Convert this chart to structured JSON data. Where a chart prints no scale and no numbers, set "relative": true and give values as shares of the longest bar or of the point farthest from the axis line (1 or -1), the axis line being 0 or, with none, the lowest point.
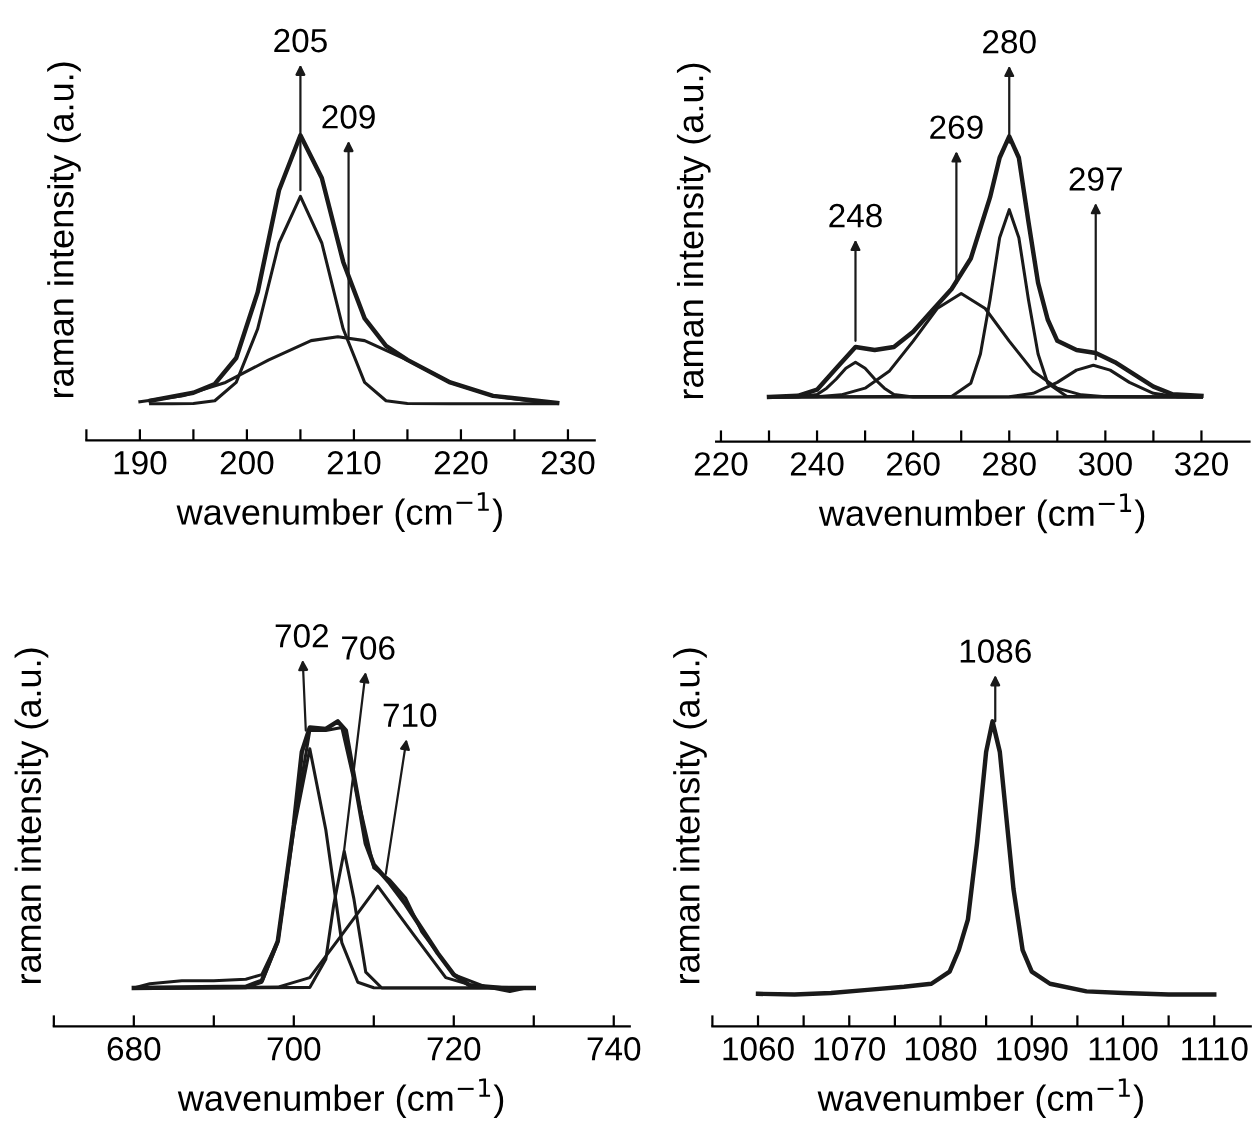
{
  "chart_data": [
    {
      "type": "line",
      "relative": true,
      "xlabel": "wavenumber (cm$^{−1}$)",
      "ylabel": "raman intensity (a.u.)",
      "tick_labels": "x",
      "grid": false,
      "legend": false,
      "xlim": [
        185,
        232.5
      ],
      "xticks": [
        {
          "value": 185,
          "label": null
        },
        190,
        {
          "value": 195,
          "label": null
        },
        200,
        {
          "value": 205,
          "label": null
        },
        210,
        {
          "value": 215,
          "label": null
        },
        220,
        {
          "value": 225,
          "label": null
        },
        230
      ],
      "series": [
        {
          "color": "#1a1a1a",
          "x": [
            191,
            195,
            197,
            199,
            201,
            203,
            205,
            207,
            209,
            211,
            213,
            215,
            219,
            223,
            229
          ],
          "values": [
            0.13,
            0.156,
            0.185,
            0.27,
            0.485,
            0.82,
            1.0,
            0.86,
            0.585,
            0.4,
            0.31,
            0.264,
            0.19,
            0.146,
            0.123
          ]
        },
        {
          "color": "#1a1a1a",
          "x": [
            191,
            193,
            195,
            197,
            199,
            201,
            203,
            205,
            207,
            209,
            211,
            213,
            215,
            219,
            223,
            229
          ],
          "values": [
            0.12,
            0.12,
            0.121,
            0.13,
            0.19,
            0.365,
            0.647,
            0.8,
            0.647,
            0.365,
            0.19,
            0.13,
            0.121,
            0.12,
            0.12,
            0.12
          ]
        },
        {
          "color": "#1a1a1a",
          "x": [
            190,
            194,
            198,
            202,
            206,
            208.5,
            211,
            215,
            219,
            223,
            227,
            229
          ],
          "values": [
            0.127,
            0.146,
            0.19,
            0.263,
            0.327,
            0.34,
            0.327,
            0.263,
            0.19,
            0.146,
            0.127,
            0.123
          ]
        }
      ],
      "annotations": [
        {
          "text": "205",
          "x": 205,
          "y": 0.82
        },
        {
          "text": "209",
          "x": 209.5,
          "y": 0.34
        }
      ]
    },
    {
      "type": "line",
      "relative": true,
      "xlabel": "wavenumber (cm$^{−1}$)",
      "ylabel": "raman intensity (a.u.)",
      "tick_labels": "x",
      "grid": false,
      "legend": false,
      "xlim": [
        219,
        330
      ],
      "xticks": [
        220,
        {
          "value": 230,
          "label": null
        },
        240,
        {
          "value": 250,
          "label": null
        },
        260,
        {
          "value": 270,
          "label": null
        },
        280,
        {
          "value": 290,
          "label": null
        },
        300,
        {
          "value": 310,
          "label": null
        },
        320
      ],
      "series": [
        {
          "color": "#1a1a1a",
          "x": [
            230,
            236,
            240,
            244,
            248,
            252,
            256,
            260,
            264,
            268,
            272,
            276,
            278,
            280,
            282,
            284,
            286,
            288,
            290,
            294,
            298,
            302,
            306,
            310,
            314,
            320
          ],
          "values": [
            0.146,
            0.15,
            0.17,
            0.24,
            0.31,
            0.3,
            0.31,
            0.36,
            0.43,
            0.5,
            0.6,
            0.8,
            0.93,
            1.0,
            0.93,
            0.72,
            0.52,
            0.4,
            0.33,
            0.3,
            0.29,
            0.26,
            0.22,
            0.18,
            0.155,
            0.15
          ]
        },
        {
          "color": "#1a1a1a",
          "x": [
            230,
            236,
            240,
            242,
            244,
            246,
            248,
            250,
            252,
            254,
            256,
            260,
            320
          ],
          "values": [
            0.146,
            0.146,
            0.154,
            0.175,
            0.205,
            0.24,
            0.26,
            0.24,
            0.205,
            0.175,
            0.154,
            0.146,
            0.146
          ]
        },
        {
          "color": "#1a1a1a",
          "x": [
            230,
            240,
            245,
            250,
            255,
            260,
            265,
            270,
            275,
            280,
            285,
            290,
            295,
            300,
            320
          ],
          "values": [
            0.146,
            0.147,
            0.153,
            0.175,
            0.23,
            0.329,
            0.436,
            0.485,
            0.436,
            0.329,
            0.23,
            0.175,
            0.153,
            0.147,
            0.146
          ]
        },
        {
          "color": "#1a1a1a",
          "x": [
            230,
            268,
            272,
            274,
            276,
            278,
            280,
            282,
            284,
            286,
            288,
            292,
            320
          ],
          "values": [
            0.146,
            0.148,
            0.191,
            0.287,
            0.465,
            0.668,
            0.76,
            0.668,
            0.465,
            0.287,
            0.191,
            0.148,
            0.146
          ]
        },
        {
          "color": "#1a1a1a",
          "x": [
            230,
            270,
            280,
            285,
            290,
            294,
            297.5,
            301,
            305,
            310,
            315,
            320
          ],
          "values": [
            0.146,
            0.146,
            0.147,
            0.158,
            0.194,
            0.234,
            0.25,
            0.234,
            0.194,
            0.158,
            0.147,
            0.146
          ]
        }
      ],
      "annotations": [
        {
          "text": "248",
          "x": 248,
          "y": 0.33
        },
        {
          "text": "269",
          "x": 269,
          "y": 0.52
        },
        {
          "text": "280",
          "x": 280,
          "y": 0.98
        },
        {
          "text": "297",
          "x": 298,
          "y": 0.27
        }
      ]
    },
    {
      "type": "line",
      "relative": true,
      "xlabel": "wavenumber (cm$^{−1}$)",
      "ylabel": "raman intensity (a.u.)",
      "tick_labels": "x",
      "grid": false,
      "legend": false,
      "xlim": [
        670,
        742
      ],
      "xticks": [
        {
          "value": 670,
          "label": null
        },
        680,
        {
          "value": 690,
          "label": null
        },
        700,
        {
          "value": 710,
          "label": null
        },
        720,
        {
          "value": 730,
          "label": null
        },
        740
      ],
      "series": [
        {
          "color": "#1a1a1a",
          "x": [
            680,
            694,
            696,
            698,
            700,
            701,
            702,
            704,
            705.5,
            706.5,
            708,
            709,
            710,
            712,
            714,
            716,
            718,
            720,
            722,
            726,
            730
          ],
          "values": [
            0.126,
            0.13,
            0.15,
            0.28,
            0.66,
            0.9,
            0.98,
            0.975,
            1.0,
            0.97,
            0.75,
            0.6,
            0.53,
            0.47,
            0.4,
            0.32,
            0.24,
            0.17,
            0.135,
            0.126,
            0.126
          ]
        },
        {
          "color": "#1a1a1a",
          "x": [
            680,
            682,
            686,
            690,
            694,
            696,
            698,
            700,
            702,
            704,
            706,
            708,
            710,
            712,
            714,
            716,
            720,
            724,
            727,
            729
          ],
          "values": [
            0.126,
            0.14,
            0.15,
            0.15,
            0.155,
            0.17,
            0.28,
            0.66,
            0.97,
            0.97,
            0.98,
            0.75,
            0.52,
            0.48,
            0.42,
            0.31,
            0.17,
            0.13,
            0.115,
            0.126
          ]
        },
        {
          "color": "#1a1a1a",
          "x": [
            680,
            694,
            696,
            698,
            700,
            702,
            704,
            706,
            708,
            710,
            730
          ],
          "values": [
            0.126,
            0.127,
            0.145,
            0.275,
            0.645,
            0.91,
            0.645,
            0.275,
            0.145,
            0.127,
            0.126
          ]
        },
        {
          "color": "#1a1a1a",
          "x": [
            680,
            702,
            704,
            705,
            706.3,
            707.5,
            709,
            711,
            730
          ],
          "values": [
            0.126,
            0.128,
            0.22,
            0.4,
            0.575,
            0.42,
            0.178,
            0.126,
            0.126
          ]
        },
        {
          "color": "#1a1a1a",
          "x": [
            680,
            698,
            702,
            706,
            710.5,
            715,
            719,
            723,
            730
          ],
          "values": [
            0.126,
            0.129,
            0.16,
            0.3,
            0.46,
            0.3,
            0.16,
            0.129,
            0.126
          ]
        }
      ],
      "annotations": [
        {
          "text": "702",
          "x": 701.5,
          "y": 0.97
        },
        {
          "text": "706",
          "x": 706.3,
          "y": 0.58
        },
        {
          "text": "710",
          "x": 711.5,
          "y": 0.5
        }
      ]
    },
    {
      "type": "line",
      "relative": true,
      "xlabel": "wavenumber (cm$^{−1}$)",
      "ylabel": "raman intensity (a.u.)",
      "tick_labels": "x",
      "grid": false,
      "legend": false,
      "xlim": [
        1055,
        1114
      ],
      "xticks": [
        {
          "value": 1055,
          "label": null
        },
        1060,
        {
          "value": 1065,
          "label": null
        },
        1070,
        {
          "value": 1075,
          "label": null
        },
        1080,
        {
          "value": 1085,
          "label": null
        },
        1090,
        {
          "value": 1095,
          "label": null
        },
        1100,
        {
          "value": 1105,
          "label": null
        },
        1110
      ],
      "series": [
        {
          "color": "#1a1a1a",
          "x": [
            1060,
            1064,
            1068,
            1072,
            1076,
            1079,
            1081,
            1082,
            1083,
            1084,
            1085,
            1085.7,
            1086.5,
            1087,
            1088,
            1089,
            1090,
            1092,
            1096,
            1100,
            1105,
            1110
          ],
          "values": [
            0.107,
            0.105,
            0.11,
            0.12,
            0.13,
            0.14,
            0.18,
            0.25,
            0.35,
            0.6,
            0.9,
            1.0,
            0.9,
            0.75,
            0.45,
            0.25,
            0.18,
            0.14,
            0.115,
            0.11,
            0.105,
            0.105
          ]
        }
      ],
      "annotations": [
        {
          "text": "1086",
          "x": 1086,
          "y": 1.0
        }
      ]
    }
  ]
}
